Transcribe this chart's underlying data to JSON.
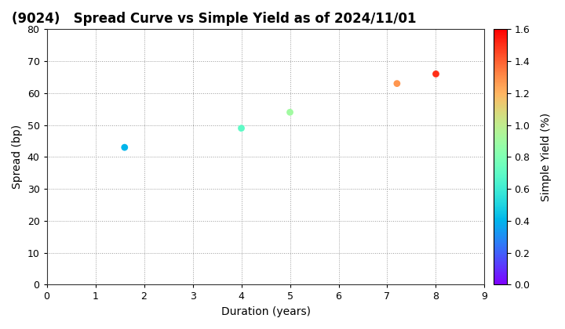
{
  "title": "(9024)   Spread Curve vs Simple Yield as of 2024/11/01",
  "xlabel": "Duration (years)",
  "ylabel": "Spread (bp)",
  "colorbar_label": "Simple Yield (%)",
  "xlim": [
    0,
    9
  ],
  "ylim": [
    0,
    80
  ],
  "xticks": [
    0,
    1,
    2,
    3,
    4,
    5,
    6,
    7,
    8,
    9
  ],
  "yticks": [
    0,
    10,
    20,
    30,
    40,
    50,
    60,
    70,
    80
  ],
  "colorbar_min": 0.0,
  "colorbar_max": 1.6,
  "colorbar_ticks": [
    0.0,
    0.2,
    0.4,
    0.6,
    0.8,
    1.0,
    1.2,
    1.4,
    1.6
  ],
  "points": [
    {
      "duration": 1.6,
      "spread": 43,
      "simple_yield": 0.4
    },
    {
      "duration": 4.0,
      "spread": 49,
      "simple_yield": 0.7
    },
    {
      "duration": 5.0,
      "spread": 54,
      "simple_yield": 0.9
    },
    {
      "duration": 7.2,
      "spread": 63,
      "simple_yield": 1.28
    },
    {
      "duration": 8.0,
      "spread": 66,
      "simple_yield": 1.5
    }
  ],
  "marker_size": 40,
  "background_color": "#ffffff",
  "grid_color": "#999999",
  "title_fontsize": 12,
  "axis_label_fontsize": 10,
  "tick_fontsize": 9
}
